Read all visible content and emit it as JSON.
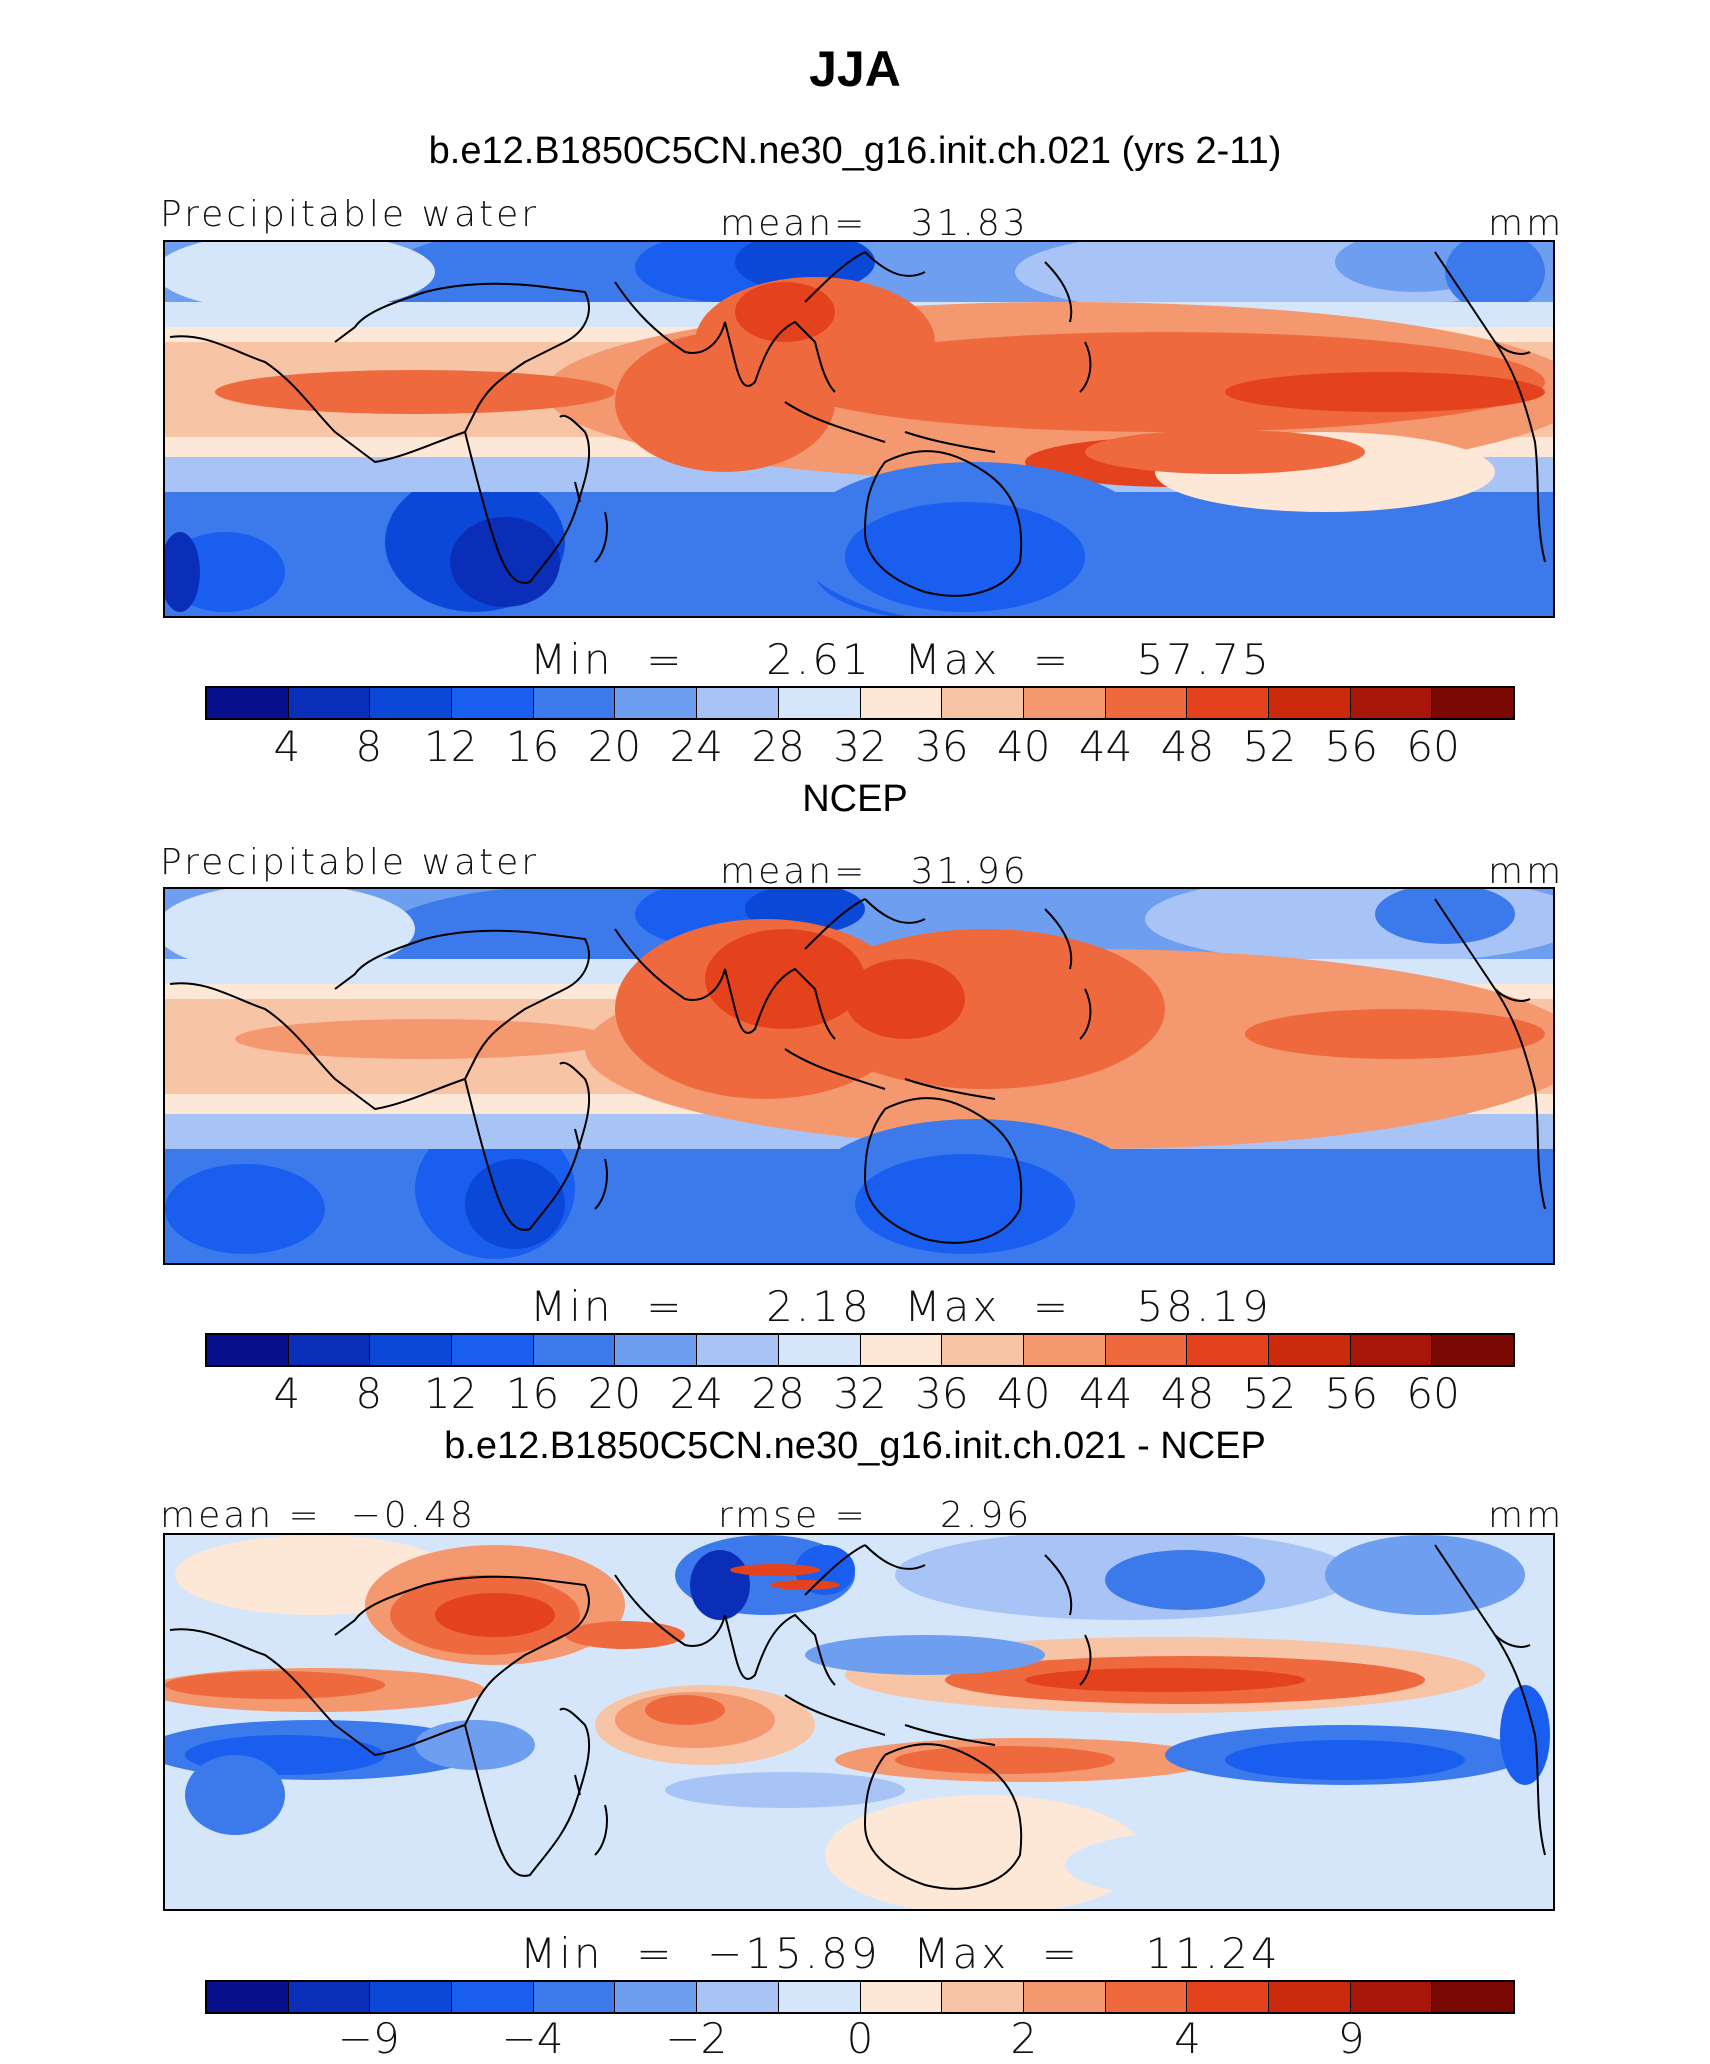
{
  "title": "JJA",
  "palette": [
    "#08108c",
    "#0a2eb8",
    "#0c48d8",
    "#1a5ef0",
    "#3c7aec",
    "#6e9ef0",
    "#a8c4f6",
    "#d6e6fa",
    "#fde8d8",
    "#f8c4a6",
    "#f49870",
    "#ee6a3e",
    "#e4421c",
    "#cc2a0c",
    "#a8160a",
    "#7a0804"
  ],
  "colors": {
    "ocean_neutral": "#ffffff",
    "land_outline": "#000000"
  },
  "panels": [
    {
      "heading": "b.e12.B1850C5CN.ne30_g16.init.ch.021 (yrs 2-11)",
      "left_label": "Precipitable water",
      "center_label": "mean=   31.83",
      "units": "mm",
      "minmax": "Min  =     2.61  Max  =    57.75",
      "colorbar_ticks": [
        "4",
        "8",
        "12",
        "16",
        "20",
        "24",
        "28",
        "32",
        "36",
        "40",
        "44",
        "48",
        "52",
        "56",
        "60"
      ],
      "field": "model"
    },
    {
      "heading": "NCEP",
      "left_label": "Precipitable water",
      "center_label": "mean=   31.96",
      "units": "mm",
      "minmax": "Min  =     2.18  Max  =    58.19",
      "colorbar_ticks": [
        "4",
        "8",
        "12",
        "16",
        "20",
        "24",
        "28",
        "32",
        "36",
        "40",
        "44",
        "48",
        "52",
        "56",
        "60"
      ],
      "field": "obs"
    },
    {
      "heading": "b.e12.B1850C5CN.ne30_g16.init.ch.021 - NCEP",
      "left_label": "mean =  −0.48",
      "center_label": "rmse =     2.96",
      "units": "mm",
      "minmax": "Min  =  −15.89  Max  =    11.24",
      "colorbar_ticks": [
        "−9",
        "−4",
        "−2",
        "0",
        "2",
        "4",
        "9"
      ],
      "field": "diff"
    }
  ]
}
